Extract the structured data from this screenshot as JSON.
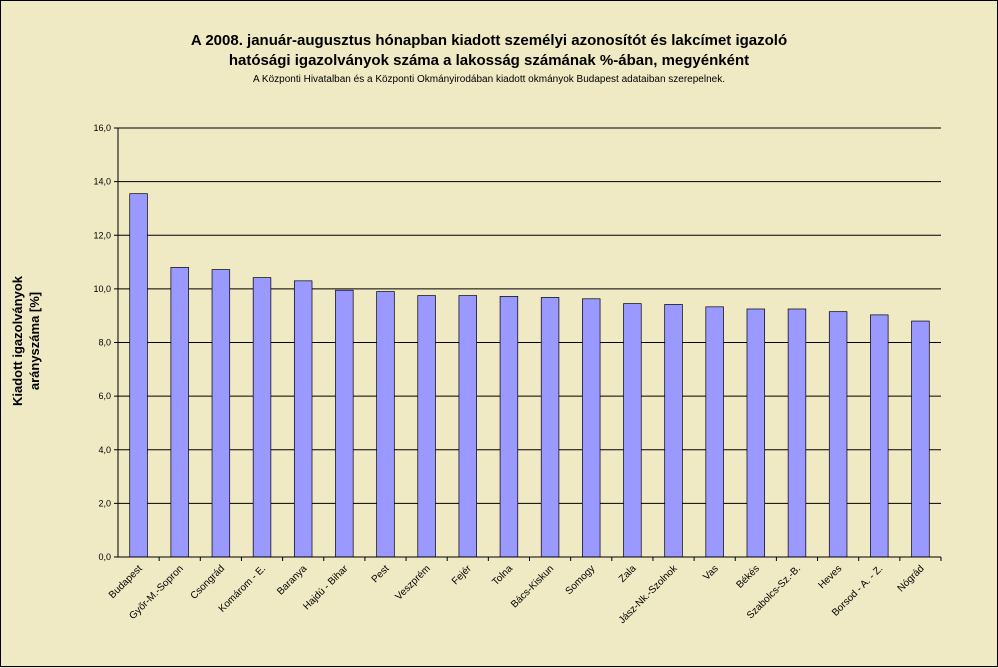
{
  "chart_data": {
    "type": "bar",
    "title_lines": [
      "A 2008. január-augusztus hónapban kiadott személyi azonosítót és lakcímet igazoló",
      "hatósági igazolványok száma a lakosság  számának %-ában, megyénként"
    ],
    "subtitle": "A Központi Hivatalban és a Központi Okmányirodában kiadott okmányok Budapest adataiban szerepelnek.",
    "xlabel": "",
    "ylabel_lines": [
      "Kiadott igazolványok",
      "arányszáma [%]"
    ],
    "ylim": [
      0,
      16
    ],
    "yticks": [
      "0,0",
      "2,0",
      "4,0",
      "6,0",
      "8,0",
      "10,0",
      "12,0",
      "14,0",
      "16,0"
    ],
    "ytick_values": [
      0,
      2,
      4,
      6,
      8,
      10,
      12,
      14,
      16
    ],
    "grid": true,
    "legend": "none",
    "bar_color": "#9999ff",
    "categories": [
      "Budapest",
      "Győr-M.-Sopron",
      "Csongrád",
      "Komárom - E.",
      "Baranya",
      "Hajdú - Bihar",
      "Pest",
      "Veszprém",
      "Fejér",
      "Tolna",
      "Bács-Kiskun",
      "Somogy",
      "Zala",
      "Jász-Nk.-Szolnok",
      "Vas",
      "Békés",
      "Szabolcs-Sz.-B.",
      "Heves",
      "Borsod - A. - Z.",
      "Nógrád"
    ],
    "values": [
      13.55,
      10.8,
      10.72,
      10.42,
      10.3,
      9.95,
      9.9,
      9.75,
      9.75,
      9.72,
      9.68,
      9.63,
      9.45,
      9.42,
      9.33,
      9.25,
      9.25,
      9.15,
      9.03,
      8.8
    ]
  }
}
